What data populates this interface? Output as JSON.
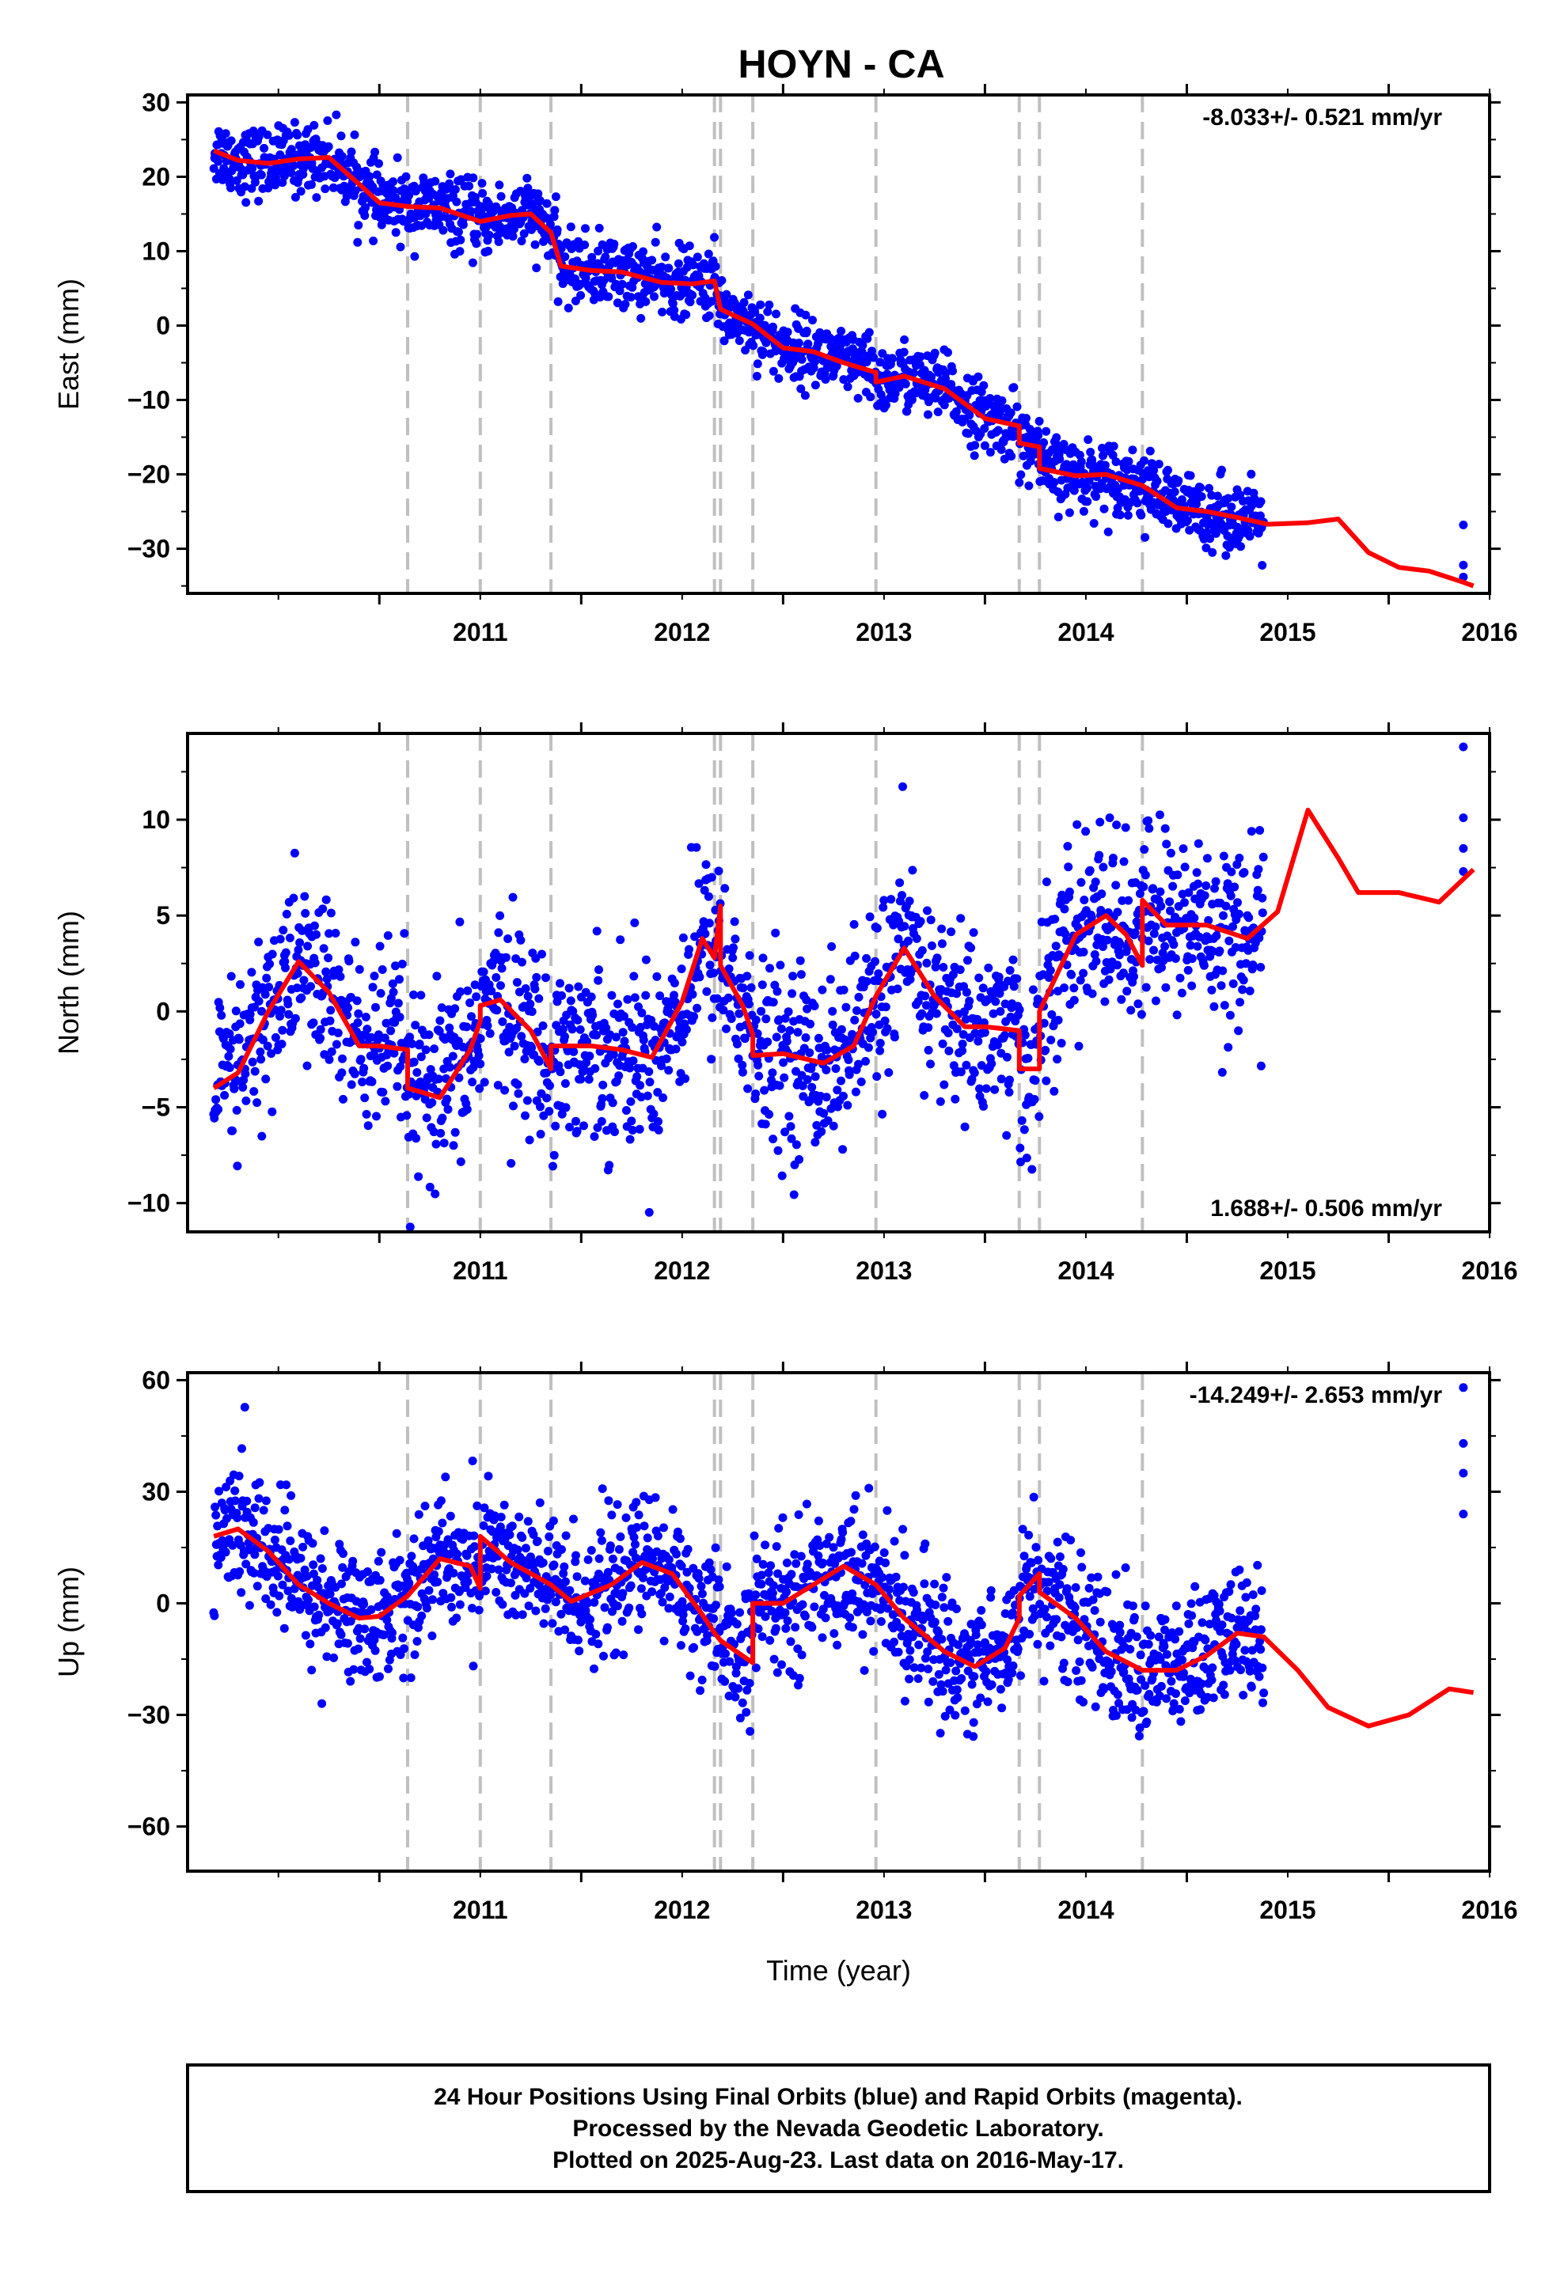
{
  "title": "HOYN - CA",
  "colors": {
    "final_orbits": "#0000ff",
    "model_fit": "#ff0000",
    "event_lines": "#c0c0c0",
    "frame": "#000000"
  },
  "chart_data": [
    {
      "type": "scatter",
      "panel": "east",
      "ylabel": "East (mm)",
      "xlabel": "",
      "xlim": [
        2010.05,
        2016.5
      ],
      "ylim": [
        -36,
        31
      ],
      "yticks": [
        -30,
        -20,
        -10,
        0,
        10,
        20,
        30
      ],
      "xticks": [
        2011,
        2012,
        2013,
        2014,
        2015,
        2016
      ],
      "rate_label": "-8.033+/- 0.521 mm/yr",
      "rate_position": "top-right",
      "event_lines_x": [
        2011.14,
        2011.5,
        2011.85,
        2012.66,
        2012.69,
        2012.85,
        2013.46,
        2014.17,
        2014.27,
        2014.78
      ],
      "data_range": [
        2010.18,
        2015.38
      ],
      "extra_points": [
        {
          "x": 2016.37,
          "y": -26.8
        },
        {
          "x": 2016.37,
          "y": -32.2
        },
        {
          "x": 2016.37,
          "y": -33.8
        }
      ],
      "series": [
        {
          "name": "Final Orbits",
          "points": [
            [
              2010.18,
              23.0
            ],
            [
              2010.45,
              21.8
            ],
            [
              2010.75,
              22.4
            ],
            [
              2011.0,
              16.5
            ],
            [
              2011.3,
              15.8
            ],
            [
              2011.5,
              14.0
            ],
            [
              2011.75,
              15.0
            ],
            [
              2011.9,
              8.0
            ],
            [
              2012.2,
              7.2
            ],
            [
              2012.4,
              5.8
            ],
            [
              2012.65,
              6.0
            ],
            [
              2012.75,
              1.2
            ],
            [
              2013.0,
              -3.0
            ],
            [
              2013.3,
              -5.0
            ],
            [
              2013.45,
              -6.0
            ],
            [
              2013.7,
              -7.5
            ],
            [
              2014.0,
              -12.0
            ],
            [
              2014.15,
              -13.5
            ],
            [
              2014.3,
              -19.0
            ],
            [
              2014.6,
              -20.0
            ],
            [
              2014.9,
              -23.0
            ],
            [
              2015.1,
              -25.0
            ],
            [
              2015.38,
              -26.5
            ]
          ],
          "scatter_mm": 2.3
        },
        {
          "name": "Model",
          "points": [
            [
              2010.18,
              23.5
            ],
            [
              2010.3,
              22.2
            ],
            [
              2010.45,
              21.8
            ],
            [
              2010.6,
              22.4
            ],
            [
              2010.75,
              22.6
            ],
            [
              2010.9,
              19.0
            ],
            [
              2011.0,
              16.5
            ],
            [
              2011.14,
              16.0
            ],
            [
              2011.3,
              15.8
            ],
            [
              2011.5,
              14.0
            ],
            [
              2011.65,
              14.8
            ],
            [
              2011.75,
              15.0
            ],
            [
              2011.85,
              12.5
            ],
            [
              2011.9,
              8.0
            ],
            [
              2012.05,
              7.4
            ],
            [
              2012.2,
              7.2
            ],
            [
              2012.4,
              5.8
            ],
            [
              2012.55,
              5.6
            ],
            [
              2012.66,
              6.0
            ],
            [
              2012.69,
              2.2
            ],
            [
              2012.85,
              0.2
            ],
            [
              2013.0,
              -3.0
            ],
            [
              2013.15,
              -3.5
            ],
            [
              2013.3,
              -5.0
            ],
            [
              2013.46,
              -6.3
            ],
            [
              2013.46,
              -7.6
            ],
            [
              2013.6,
              -6.8
            ],
            [
              2013.8,
              -8.5
            ],
            [
              2014.0,
              -12.5
            ],
            [
              2014.17,
              -13.5
            ],
            [
              2014.17,
              -15.8
            ],
            [
              2014.27,
              -16.3
            ],
            [
              2014.27,
              -19.2
            ],
            [
              2014.45,
              -20.2
            ],
            [
              2014.6,
              -20.0
            ],
            [
              2014.78,
              -21.5
            ],
            [
              2014.95,
              -24.5
            ],
            [
              2015.1,
              -25.0
            ],
            [
              2015.25,
              -25.8
            ],
            [
              2015.4,
              -26.7
            ],
            [
              2015.6,
              -26.5
            ],
            [
              2015.75,
              -26.0
            ],
            [
              2015.9,
              -30.5
            ],
            [
              2016.05,
              -32.5
            ],
            [
              2016.2,
              -33.0
            ],
            [
              2016.37,
              -34.5
            ],
            [
              2016.42,
              -35.0
            ]
          ]
        }
      ]
    },
    {
      "type": "scatter",
      "panel": "north",
      "ylabel": "North (mm)",
      "xlabel": "",
      "xlim": [
        2010.05,
        2016.5
      ],
      "ylim": [
        -11.5,
        14.5
      ],
      "yticks": [
        -10,
        -5,
        0,
        5,
        10
      ],
      "xticks": [
        2011,
        2012,
        2013,
        2014,
        2015,
        2016
      ],
      "rate_label": "1.688+/- 0.506 mm/yr",
      "rate_position": "bottom-right",
      "event_lines_x": [
        2011.14,
        2011.5,
        2011.85,
        2012.66,
        2012.69,
        2012.85,
        2013.46,
        2014.17,
        2014.27,
        2014.78
      ],
      "data_range": [
        2010.18,
        2015.38
      ],
      "extra_points": [
        {
          "x": 2016.37,
          "y": 13.8
        },
        {
          "x": 2016.37,
          "y": 10.1
        },
        {
          "x": 2016.37,
          "y": 8.5
        },
        {
          "x": 2016.37,
          "y": 7.3
        }
      ],
      "series": [
        {
          "name": "Final Orbits",
          "scatter_mm": 2.4
        },
        {
          "name": "Model",
          "points": [
            [
              2010.18,
              -4.0
            ],
            [
              2010.3,
              -3.2
            ],
            [
              2010.45,
              0.0
            ],
            [
              2010.6,
              2.6
            ],
            [
              2010.75,
              1.0
            ],
            [
              2010.9,
              -1.8
            ],
            [
              2011.0,
              -1.8
            ],
            [
              2011.14,
              -2.0
            ],
            [
              2011.14,
              -4.0
            ],
            [
              2011.3,
              -4.5
            ],
            [
              2011.45,
              -2.0
            ],
            [
              2011.5,
              -0.5
            ],
            [
              2011.5,
              0.3
            ],
            [
              2011.6,
              0.6
            ],
            [
              2011.75,
              -1.0
            ],
            [
              2011.85,
              -3.0
            ],
            [
              2011.85,
              -1.8
            ],
            [
              2012.05,
              -1.8
            ],
            [
              2012.2,
              -2.0
            ],
            [
              2012.35,
              -2.4
            ],
            [
              2012.5,
              0.5
            ],
            [
              2012.6,
              3.8
            ],
            [
              2012.66,
              2.8
            ],
            [
              2012.69,
              5.5
            ],
            [
              2012.69,
              2.4
            ],
            [
              2012.8,
              0.3
            ],
            [
              2012.85,
              -1.2
            ],
            [
              2012.85,
              -2.3
            ],
            [
              2013.0,
              -2.2
            ],
            [
              2013.2,
              -2.7
            ],
            [
              2013.35,
              -1.8
            ],
            [
              2013.46,
              0.8
            ],
            [
              2013.6,
              3.3
            ],
            [
              2013.75,
              0.8
            ],
            [
              2013.9,
              -0.8
            ],
            [
              2014.0,
              -0.8
            ],
            [
              2014.17,
              -1.0
            ],
            [
              2014.17,
              -3.0
            ],
            [
              2014.27,
              -3.0
            ],
            [
              2014.27,
              0.0
            ],
            [
              2014.45,
              4.0
            ],
            [
              2014.6,
              5.0
            ],
            [
              2014.7,
              4.0
            ],
            [
              2014.78,
              2.4
            ],
            [
              2014.78,
              5.8
            ],
            [
              2014.9,
              4.5
            ],
            [
              2015.1,
              4.5
            ],
            [
              2015.3,
              3.8
            ],
            [
              2015.45,
              5.2
            ],
            [
              2015.6,
              10.5
            ],
            [
              2015.75,
              8.0
            ],
            [
              2015.85,
              6.2
            ],
            [
              2016.05,
              6.2
            ],
            [
              2016.25,
              5.7
            ],
            [
              2016.42,
              7.4
            ]
          ]
        }
      ]
    },
    {
      "type": "scatter",
      "panel": "up",
      "ylabel": "Up (mm)",
      "xlabel": "Time (year)",
      "xlim": [
        2010.05,
        2016.5
      ],
      "ylim": [
        -72,
        62
      ],
      "yticks": [
        -60,
        -30,
        0,
        30,
        60
      ],
      "xticks": [
        2011,
        2012,
        2013,
        2014,
        2015,
        2016
      ],
      "rate_label": "-14.249+/- 2.653 mm/yr",
      "rate_position": "top-right",
      "event_lines_x": [
        2011.14,
        2011.5,
        2011.85,
        2012.66,
        2012.69,
        2012.85,
        2013.46,
        2014.17,
        2014.27,
        2014.78
      ],
      "data_range": [
        2010.18,
        2015.38
      ],
      "extra_points": [
        {
          "x": 2016.37,
          "y": 58.0
        },
        {
          "x": 2016.37,
          "y": 43.0
        },
        {
          "x": 2016.37,
          "y": 35.0
        },
        {
          "x": 2016.37,
          "y": 24.0
        }
      ],
      "series": [
        {
          "name": "Final Orbits",
          "scatter_mm": 9.0
        },
        {
          "name": "Model",
          "points": [
            [
              2010.18,
              18.0
            ],
            [
              2010.3,
              20.0
            ],
            [
              2010.45,
              14.0
            ],
            [
              2010.6,
              5.0
            ],
            [
              2010.75,
              0.0
            ],
            [
              2010.9,
              -4.0
            ],
            [
              2011.0,
              -3.5
            ],
            [
              2011.14,
              2.0
            ],
            [
              2011.3,
              12.0
            ],
            [
              2011.45,
              10.0
            ],
            [
              2011.5,
              4.0
            ],
            [
              2011.5,
              18.0
            ],
            [
              2011.65,
              11.0
            ],
            [
              2011.85,
              5.0
            ],
            [
              2011.95,
              0.5
            ],
            [
              2012.15,
              5.0
            ],
            [
              2012.3,
              11.0
            ],
            [
              2012.45,
              8.0
            ],
            [
              2012.6,
              -3.0
            ],
            [
              2012.66,
              -8.0
            ],
            [
              2012.69,
              -10.0
            ],
            [
              2012.85,
              -16.0
            ],
            [
              2012.85,
              0.0
            ],
            [
              2013.0,
              0.0
            ],
            [
              2013.15,
              5.0
            ],
            [
              2013.3,
              10.0
            ],
            [
              2013.46,
              5.0
            ],
            [
              2013.6,
              -4.0
            ],
            [
              2013.8,
              -13.0
            ],
            [
              2013.95,
              -17.0
            ],
            [
              2014.1,
              -12.0
            ],
            [
              2014.17,
              -4.0
            ],
            [
              2014.17,
              2.0
            ],
            [
              2014.27,
              8.0
            ],
            [
              2014.27,
              3.0
            ],
            [
              2014.45,
              -4.0
            ],
            [
              2014.6,
              -13.0
            ],
            [
              2014.78,
              -18.0
            ],
            [
              2014.95,
              -18.0
            ],
            [
              2015.1,
              -14.0
            ],
            [
              2015.25,
              -8.0
            ],
            [
              2015.38,
              -9.0
            ],
            [
              2015.55,
              -18.0
            ],
            [
              2015.7,
              -28.0
            ],
            [
              2015.9,
              -33.0
            ],
            [
              2016.1,
              -30.0
            ],
            [
              2016.3,
              -23.0
            ],
            [
              2016.42,
              -24.0
            ]
          ]
        }
      ]
    }
  ],
  "footer": {
    "line1": "24 Hour Positions Using Final Orbits (blue) and Rapid Orbits (magenta).",
    "line2": "Processed by the Nevada Geodetic Laboratory.",
    "line3": "Plotted on 2025-Aug-23. Last data on 2016-May-17."
  }
}
